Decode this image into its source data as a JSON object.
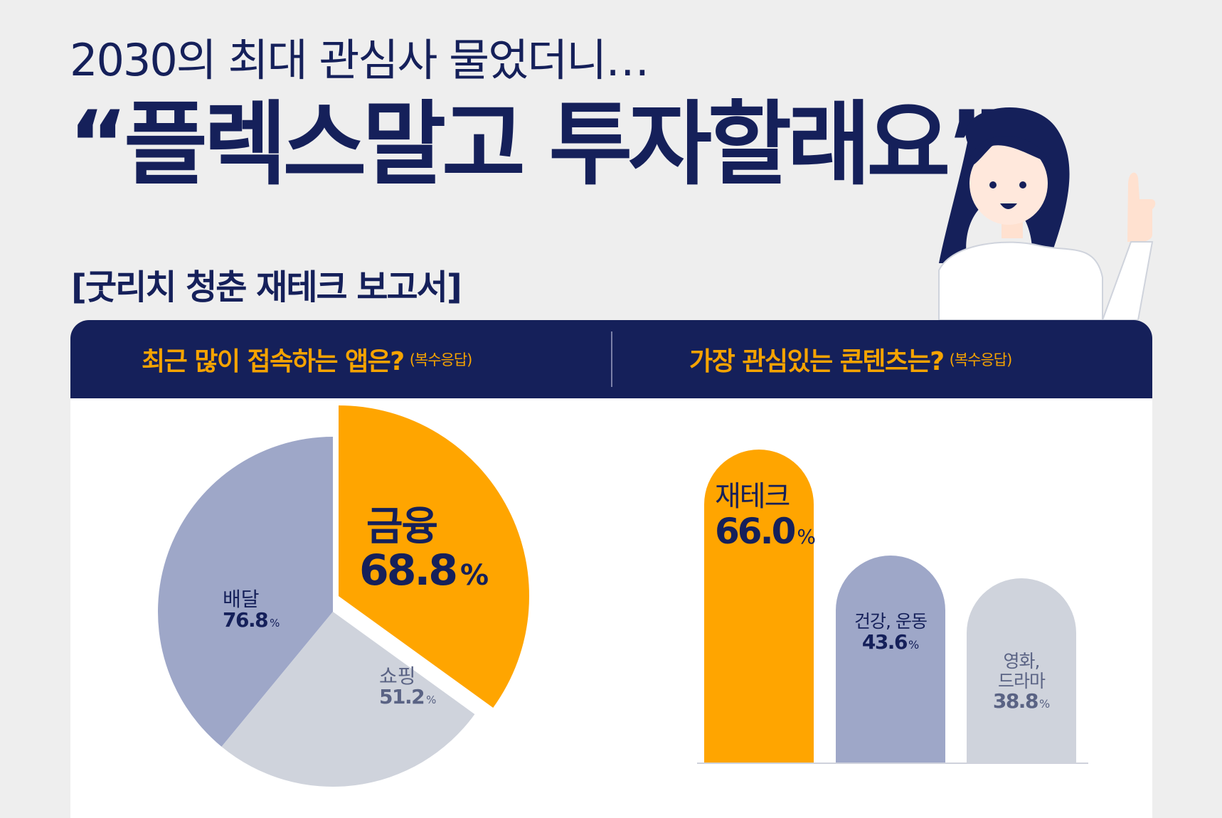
{
  "header": {
    "subtitle": "2030의 최대 관심사 물었더니…",
    "title": "“플렉스말고 투자할래요”",
    "report_tag": "[굿리치 청춘 재테크 보고서]"
  },
  "colors": {
    "navy": "#15205a",
    "orange": "#ffa500",
    "slate": "#9ea7c8",
    "light": "#cfd3dc",
    "background": "#eeeeee"
  },
  "questions": {
    "left": {
      "text": "최근 많이 접속하는 앱은?",
      "note": "(복수응답)"
    },
    "right": {
      "text": "가장 관심있는 콘텐츠는?",
      "note": "(복수응답)"
    }
  },
  "chart_data": [
    {
      "type": "pie",
      "unit": "%",
      "slices": [
        {
          "label": "금융",
          "value": 68.8,
          "color": "#ffa500",
          "highlight": true
        },
        {
          "label": "쇼핑",
          "value": 51.2,
          "color": "#cfd3dc"
        },
        {
          "label": "배달",
          "value": 76.8,
          "color": "#9ea7c8"
        }
      ]
    },
    {
      "type": "bar",
      "unit": "%",
      "ylim": [
        0,
        66.0
      ],
      "bars": [
        {
          "label": "재테크",
          "value": 66.0,
          "color": "#ffa500"
        },
        {
          "label": "건강, 운동",
          "value": 43.6,
          "color": "#9ea7c8"
        },
        {
          "label": "영화,\n드라마",
          "value": 38.8,
          "color": "#cfd3dc"
        }
      ]
    }
  ],
  "labels": {
    "pie": [
      {
        "name": "금융",
        "value": "68.8",
        "pct": "%"
      },
      {
        "name": "쇼핑",
        "value": "51.2",
        "pct": "%"
      },
      {
        "name": "배달",
        "value": "76.8",
        "pct": "%"
      }
    ],
    "bars": [
      {
        "name": "재테크",
        "value": "66.0",
        "pct": "%"
      },
      {
        "name": "건강, 운동",
        "value": "43.6",
        "pct": "%"
      },
      {
        "name_line1": "영화,",
        "name_line2": "드라마",
        "value": "38.8",
        "pct": "%"
      }
    ]
  }
}
